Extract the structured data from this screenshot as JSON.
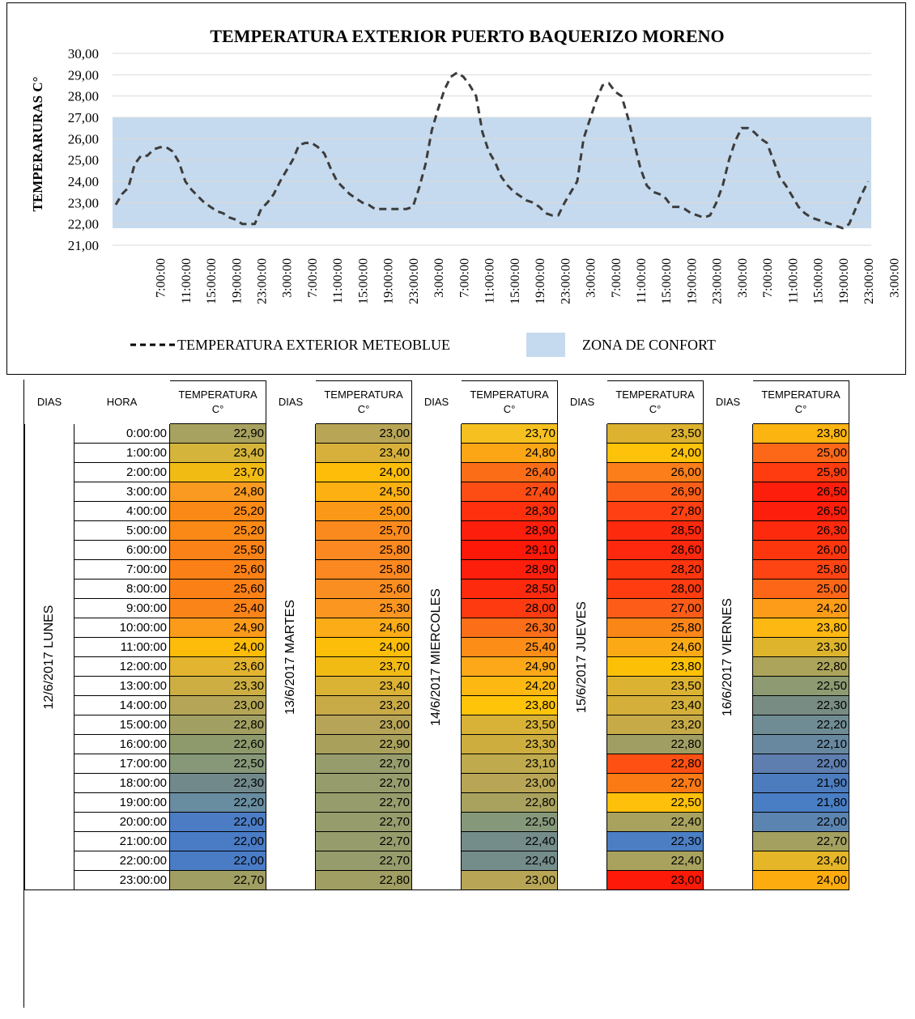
{
  "chart_data": {
    "type": "line",
    "title": "TEMPERATURA EXTERIOR  PUERTO BAQUERIZO MORENO",
    "ylabel": "TEMPERARURAS C°",
    "ylim": [
      21,
      30
    ],
    "y_ticks": [
      "30,00",
      "29,00",
      "28,00",
      "27,00",
      "26,00",
      "25,00",
      "24,00",
      "23,00",
      "22,00",
      "21,00"
    ],
    "x_tick_labels": [
      "7:00:00",
      "11:00:00",
      "15:00:00",
      "19:00:00",
      "23:00:00",
      "3:00:00",
      "7:00:00",
      "11:00:00",
      "15:00:00",
      "19:00:00",
      "23:00:00",
      "3:00:00",
      "7:00:00",
      "11:00:00",
      "15:00:00",
      "19:00:00",
      "23:00:00",
      "3:00:00",
      "7:00:00",
      "11:00:00",
      "15:00:00",
      "19:00:00",
      "23:00:00",
      "3:00:00",
      "7:00:00",
      "11:00:00",
      "15:00:00",
      "19:00:00",
      "23:00:00",
      "3:00:00"
    ],
    "comfort_zone": [
      21.8,
      27.0
    ],
    "series": [
      {
        "name": "TEMPERATURA EXTERIOR METEOBLUE",
        "style": "dashed",
        "color": "#000000",
        "values": [
          22.9,
          23.4,
          23.7,
          24.8,
          25.2,
          25.2,
          25.5,
          25.6,
          25.6,
          25.4,
          24.9,
          24.0,
          23.6,
          23.3,
          23.0,
          22.8,
          22.6,
          22.5,
          22.3,
          22.2,
          22.0,
          22.0,
          22.0,
          22.7,
          23.0,
          23.4,
          24.0,
          24.5,
          25.0,
          25.7,
          25.8,
          25.8,
          25.6,
          25.3,
          24.6,
          24.0,
          23.7,
          23.4,
          23.2,
          23.0,
          22.9,
          22.7,
          22.7,
          22.7,
          22.7,
          22.7,
          22.7,
          22.8,
          23.7,
          24.8,
          26.4,
          27.4,
          28.3,
          28.9,
          29.1,
          28.9,
          28.5,
          28.0,
          26.3,
          25.4,
          24.9,
          24.2,
          23.8,
          23.5,
          23.3,
          23.1,
          23.0,
          22.8,
          22.5,
          22.4,
          22.4,
          23.0,
          23.5,
          24.0,
          26.0,
          26.9,
          27.8,
          28.5,
          28.6,
          28.2,
          28.0,
          27.0,
          25.8,
          24.6,
          23.8,
          23.5,
          23.4,
          23.2,
          22.8,
          22.8,
          22.7,
          22.5,
          22.4,
          22.3,
          22.4,
          23.0,
          23.8,
          25.0,
          25.9,
          26.5,
          26.5,
          26.3,
          26.0,
          25.8,
          25.0,
          24.2,
          23.8,
          23.3,
          22.8,
          22.5,
          22.3,
          22.2,
          22.1,
          22.0,
          21.9,
          21.8,
          22.0,
          22.7,
          23.4,
          24.0
        ]
      },
      {
        "name": "ZONA DE CONFORT",
        "style": "area",
        "color": "#c5daee"
      }
    ],
    "legend_position": "bottom"
  },
  "table": {
    "header_dias": "DIAS",
    "header_hora": "HORA",
    "header_temp_line1": "TEMPERATURA",
    "header_temp_line2": "C°",
    "hours": [
      "0:00:00",
      "1:00:00",
      "2:00:00",
      "3:00:00",
      "4:00:00",
      "5:00:00",
      "6:00:00",
      "7:00:00",
      "8:00:00",
      "9:00:00",
      "10:00:00",
      "11:00:00",
      "12:00:00",
      "13:00:00",
      "14:00:00",
      "15:00:00",
      "16:00:00",
      "17:00:00",
      "18:00:00",
      "19:00:00",
      "20:00:00",
      "21:00:00",
      "22:00:00",
      "23:00:00"
    ],
    "days": [
      {
        "label": "12/6/2017 LUNES",
        "values": [
          "22,90",
          "23,40",
          "23,70",
          "24,80",
          "25,20",
          "25,20",
          "25,50",
          "25,60",
          "25,60",
          "25,40",
          "24,90",
          "24,00",
          "23,60",
          "23,30",
          "23,00",
          "22,80",
          "22,60",
          "22,50",
          "22,30",
          "22,20",
          "22,00",
          "22,00",
          "22,00",
          "22,70"
        ],
        "colors": [
          "#a8a260",
          "#d4b43a",
          "#f2bb14",
          "#fb9a20",
          "#fb8916",
          "#fb8916",
          "#fb8216",
          "#fb8016",
          "#fb8016",
          "#fb8418",
          "#fc9a1a",
          "#fdbc09",
          "#e2b430",
          "#ccae42",
          "#b4a656",
          "#a29f62",
          "#8e9a6c",
          "#869878",
          "#72898c",
          "#688ca0",
          "#4c7cc4",
          "#4a7cc6",
          "#4a7cc6",
          "#a09e62"
        ]
      },
      {
        "label": "13/6/2017 MARTES",
        "values": [
          "23,00",
          "23,40",
          "24,00",
          "24,50",
          "25,00",
          "25,70",
          "25,80",
          "25,80",
          "25,60",
          "25,30",
          "24,60",
          "24,00",
          "23,70",
          "23,40",
          "23,20",
          "23,00",
          "22,90",
          "22,70",
          "22,70",
          "22,70",
          "22,70",
          "22,70",
          "22,70",
          "22,80"
        ],
        "colors": [
          "#b8a656",
          "#d6b03a",
          "#fdbd09",
          "#fdb012",
          "#fc9818",
          "#fb8a1e",
          "#fb8820",
          "#fb8820",
          "#fb8e20",
          "#fb9620",
          "#fbac16",
          "#fdbe09",
          "#f2bb14",
          "#dab234",
          "#c8aa46",
          "#b6a458",
          "#a9a05c",
          "#969c6c",
          "#969c6c",
          "#969c6c",
          "#969c6c",
          "#969c6c",
          "#969c6c",
          "#a09e62"
        ]
      },
      {
        "label": "14/6/2017 MIERCOLES",
        "values": [
          "23,70",
          "24,80",
          "26,40",
          "27,40",
          "28,30",
          "28,90",
          "29,10",
          "28,90",
          "28,50",
          "28,00",
          "26,30",
          "25,40",
          "24,90",
          "24,20",
          "23,80",
          "23,50",
          "23,30",
          "23,10",
          "23,00",
          "22,80",
          "22,50",
          "22,40",
          "22,40",
          "23,00"
        ],
        "colors": [
          "#f6c120",
          "#fca616",
          "#fc6d18",
          "#fd4c14",
          "#fe300e",
          "#fe1e0c",
          "#fe1808",
          "#fe1e0c",
          "#fe2a0e",
          "#fe3a10",
          "#fc6e18",
          "#fc8e18",
          "#fca818",
          "#fdb812",
          "#fdc40a",
          "#d8b236",
          "#ccad3e",
          "#bfaa4e",
          "#b8a656",
          "#a8a25e",
          "#86987a",
          "#748c8a",
          "#748c8a",
          "#b8a656"
        ]
      },
      {
        "label": "15/6/2017 JUEVES",
        "values": [
          "23,50",
          "24,00",
          "26,00",
          "26,90",
          "27,80",
          "28,50",
          "28,60",
          "28,20",
          "28,00",
          "27,00",
          "25,80",
          "24,60",
          "23,80",
          "23,50",
          "23,40",
          "23,20",
          "22,80",
          "22,80",
          "22,70",
          "22,50",
          "22,40",
          "22,30",
          "22,40",
          "23,00"
        ],
        "colors": [
          "#dcb230",
          "#fdc209",
          "#fb7e1a",
          "#fc5e18",
          "#fe4012",
          "#fe2a0e",
          "#fe280e",
          "#fe360e",
          "#fe3c10",
          "#fc5c18",
          "#fb8618",
          "#fbaa16",
          "#fcc106",
          "#dcb232",
          "#d4b03a",
          "#c6aa48",
          "#a09e62",
          "#fe5012",
          "#fc7a16",
          "#fec00a",
          "#a8a25e",
          "#4c7ec4",
          "#a8a25e",
          "#fe1a08"
        ]
      },
      {
        "label": "16/6/2017 VIERNES",
        "values": [
          "23,80",
          "25,00",
          "25,90",
          "26,50",
          "26,50",
          "26,30",
          "26,00",
          "25,80",
          "25,00",
          "24,20",
          "23,80",
          "23,30",
          "22,80",
          "22,50",
          "22,30",
          "22,20",
          "22,10",
          "22,00",
          "21,90",
          "21,80",
          "22,00",
          "22,70",
          "23,40",
          "24,00"
        ],
        "colors": [
          "#fcb410",
          "#fc6818",
          "#fe3c10",
          "#fe1e0c",
          "#fe1e0c",
          "#fe2a0e",
          "#fe360e",
          "#fe4412",
          "#fc6616",
          "#fc9c18",
          "#fdb812",
          "#deb42c",
          "#aca45a",
          "#8e9a72",
          "#788c84",
          "#6f8c94",
          "#6888a0",
          "#5d7eae",
          "#4c7cbe",
          "#4a7ec4",
          "#5c84b0",
          "#a4a060",
          "#e4b628",
          "#fdac10"
        ]
      }
    ]
  },
  "legend": {
    "line_label": "TEMPERATURA EXTERIOR METEOBLUE",
    "area_label": "ZONA DE CONFORT"
  }
}
